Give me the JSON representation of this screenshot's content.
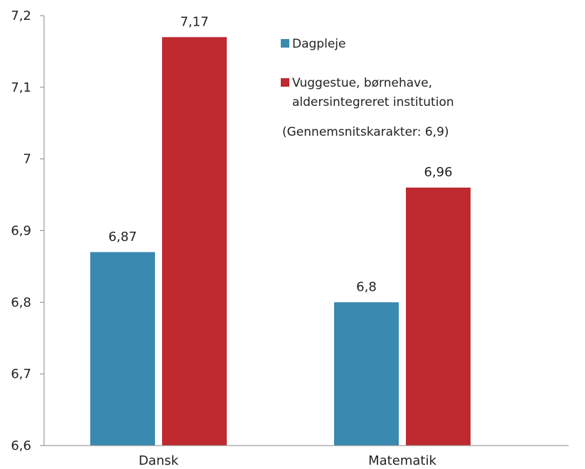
{
  "chart_data": {
    "type": "bar",
    "categories": [
      "Dansk",
      "Matematik"
    ],
    "series": [
      {
        "name": "Dagpleje",
        "values": [
          6.87,
          6.8
        ],
        "labels": [
          "6,87",
          "6,8"
        ],
        "color": "#3a89b0"
      },
      {
        "name": "Vuggestue, børnehave, aldersintegreret institution",
        "legend_lines": [
          "Vuggestue, børnehave,",
          "aldersintegreret institution"
        ],
        "values": [
          7.17,
          6.96
        ],
        "labels": [
          "7,17",
          "6,96"
        ],
        "color": "#be2a30"
      }
    ],
    "ylim": [
      6.6,
      7.2
    ],
    "yticks": [
      6.6,
      6.7,
      6.8,
      6.9,
      7.0,
      7.1,
      7.2
    ],
    "ytick_labels": [
      "6,6",
      "6,7",
      "6,8",
      "6,9",
      "7",
      "7,1",
      "7,2"
    ],
    "note": "(Gennemsnitskarakter: 6,9)",
    "grid": false,
    "legend_placement": "top-right",
    "title": "",
    "xlabel": "",
    "ylabel": ""
  }
}
